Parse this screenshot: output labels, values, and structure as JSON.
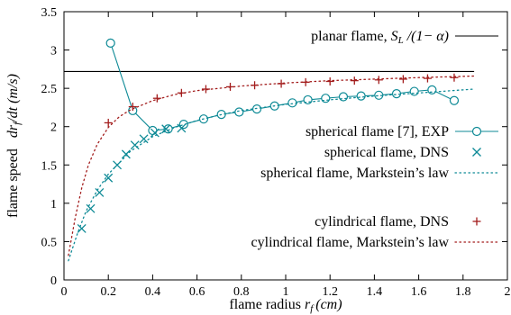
{
  "chart_data": {
    "type": "line",
    "xlabel": "flame radius",
    "xlabel_sym": "r",
    "xlabel_sub": "f",
    "xlabel_unit": "(cm)",
    "ylabel": "flame speed",
    "ylabel_sym": "dr",
    "ylabel_sub": "f",
    "ylabel_tail": "/dt",
    "ylabel_unit": "(m/s)",
    "xlim": [
      0,
      2
    ],
    "ylim": [
      0,
      3.5
    ],
    "xticks": [
      "0",
      "0.2",
      "0.4",
      "0.6",
      "0.8",
      "1",
      "1.2",
      "1.4",
      "1.6",
      "1.8",
      "2"
    ],
    "yticks": [
      "0",
      "0.5",
      "1",
      "1.5",
      "2",
      "2.5",
      "3",
      "3.5"
    ],
    "legend_position": "right",
    "series": [
      {
        "name": "planar flame, SL /(1− α)",
        "name_parts": [
          "planar flame, ",
          "S",
          "L",
          " /(1− α)"
        ],
        "style": "solid",
        "color": "#000000",
        "marker": "none",
        "x": [
          0,
          1.85
        ],
        "y": [
          2.72,
          2.72
        ]
      },
      {
        "name": "spherical flame [7], EXP",
        "style": "solid-marker",
        "color": "#0e8a96",
        "marker": "circle",
        "x": [
          0.21,
          0.31,
          0.4,
          0.47,
          0.54,
          0.63,
          0.71,
          0.79,
          0.87,
          0.95,
          1.03,
          1.1,
          1.18,
          1.26,
          1.34,
          1.42,
          1.5,
          1.58,
          1.66,
          1.76
        ],
        "y": [
          3.09,
          2.21,
          1.95,
          1.97,
          2.03,
          2.1,
          2.16,
          2.19,
          2.23,
          2.27,
          2.31,
          2.35,
          2.37,
          2.39,
          2.4,
          2.41,
          2.43,
          2.46,
          2.48,
          2.34
        ]
      },
      {
        "name": "spherical flame, DNS",
        "style": "marker",
        "color": "#0e8a96",
        "marker": "x",
        "x": [
          0.08,
          0.12,
          0.16,
          0.2,
          0.24,
          0.28,
          0.32,
          0.36,
          0.41,
          0.46,
          0.53
        ],
        "y": [
          0.67,
          0.93,
          1.14,
          1.33,
          1.5,
          1.64,
          1.76,
          1.84,
          1.92,
          1.97,
          1.98
        ]
      },
      {
        "name": "spherical flame, Markstein’s law",
        "style": "dotted",
        "color": "#0e8a96",
        "marker": "none",
        "x": [
          0.02,
          0.06,
          0.1,
          0.15,
          0.2,
          0.3,
          0.4,
          0.5,
          0.6,
          0.7,
          0.8,
          1.0,
          1.2,
          1.4,
          1.6,
          1.85
        ],
        "y": [
          0.25,
          0.6,
          0.9,
          1.17,
          1.38,
          1.68,
          1.87,
          1.99,
          2.08,
          2.15,
          2.21,
          2.29,
          2.35,
          2.4,
          2.44,
          2.49
        ]
      },
      {
        "name": "cylindrical flame, DNS",
        "style": "marker",
        "color": "#a31d1d",
        "marker": "plus",
        "x": [
          0.2,
          0.31,
          0.42,
          0.53,
          0.64,
          0.75,
          0.86,
          0.98,
          1.09,
          1.2,
          1.31,
          1.42,
          1.53,
          1.64,
          1.76
        ],
        "y": [
          2.05,
          2.26,
          2.37,
          2.44,
          2.49,
          2.52,
          2.54,
          2.56,
          2.58,
          2.59,
          2.6,
          2.61,
          2.62,
          2.63,
          2.64
        ]
      },
      {
        "name": "cylindrical flame, Markstein’s law",
        "style": "dotted",
        "color": "#a31d1d",
        "marker": "none",
        "x": [
          0.02,
          0.05,
          0.08,
          0.11,
          0.15,
          0.2,
          0.25,
          0.3,
          0.4,
          0.5,
          0.6,
          0.8,
          1.0,
          1.2,
          1.4,
          1.6,
          1.85
        ],
        "y": [
          0.32,
          0.8,
          1.2,
          1.5,
          1.77,
          1.99,
          2.13,
          2.22,
          2.34,
          2.42,
          2.47,
          2.53,
          2.57,
          2.6,
          2.62,
          2.64,
          2.66
        ]
      }
    ]
  }
}
